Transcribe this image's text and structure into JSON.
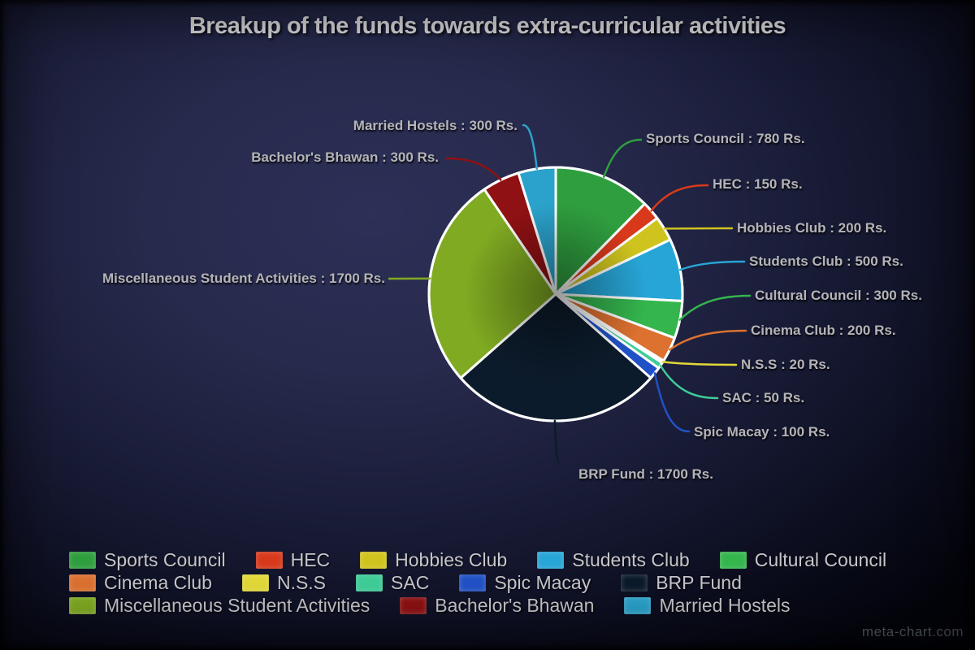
{
  "watermark": "meta-chart.com",
  "chart_data": {
    "type": "pie",
    "title": "Breakup of the funds towards extra-curricular activities",
    "unit_suffix": "Rs.",
    "label_format": "{name} : {value} Rs.",
    "total": 6300,
    "start_angle_deg": 0,
    "direction": "clockwise",
    "legend_position": "bottom",
    "slices": [
      {
        "name": "Sports Council",
        "value": 780,
        "color": "#2f9e3f"
      },
      {
        "name": "HEC",
        "value": 150,
        "color": "#d8391b"
      },
      {
        "name": "Hobbies Club",
        "value": 200,
        "color": "#cfc41e"
      },
      {
        "name": "Students Club",
        "value": 500,
        "color": "#27a5d6"
      },
      {
        "name": "Cultural Council",
        "value": 300,
        "color": "#34b54d"
      },
      {
        "name": "Cinema Club",
        "value": 200,
        "color": "#dc7130"
      },
      {
        "name": "N.S.S",
        "value": 20,
        "color": "#e2d838"
      },
      {
        "name": "SAC",
        "value": 50,
        "color": "#3ecd98"
      },
      {
        "name": "Spic Macay",
        "value": 100,
        "color": "#2151c6"
      },
      {
        "name": "BRP Fund",
        "value": 1700,
        "color": "#0c1b2b"
      },
      {
        "name": "Miscellaneous Student Activities",
        "value": 1700,
        "color": "#80aa22"
      },
      {
        "name": "Bachelor's Bhawan",
        "value": 300,
        "color": "#8f1113"
      },
      {
        "name": "Married Hostels",
        "value": 300,
        "color": "#2ba2cb"
      }
    ],
    "legend_rows": [
      [
        0,
        1,
        2,
        3,
        4
      ],
      [
        5,
        6,
        7,
        8,
        9
      ],
      [
        10,
        11,
        12
      ]
    ]
  }
}
